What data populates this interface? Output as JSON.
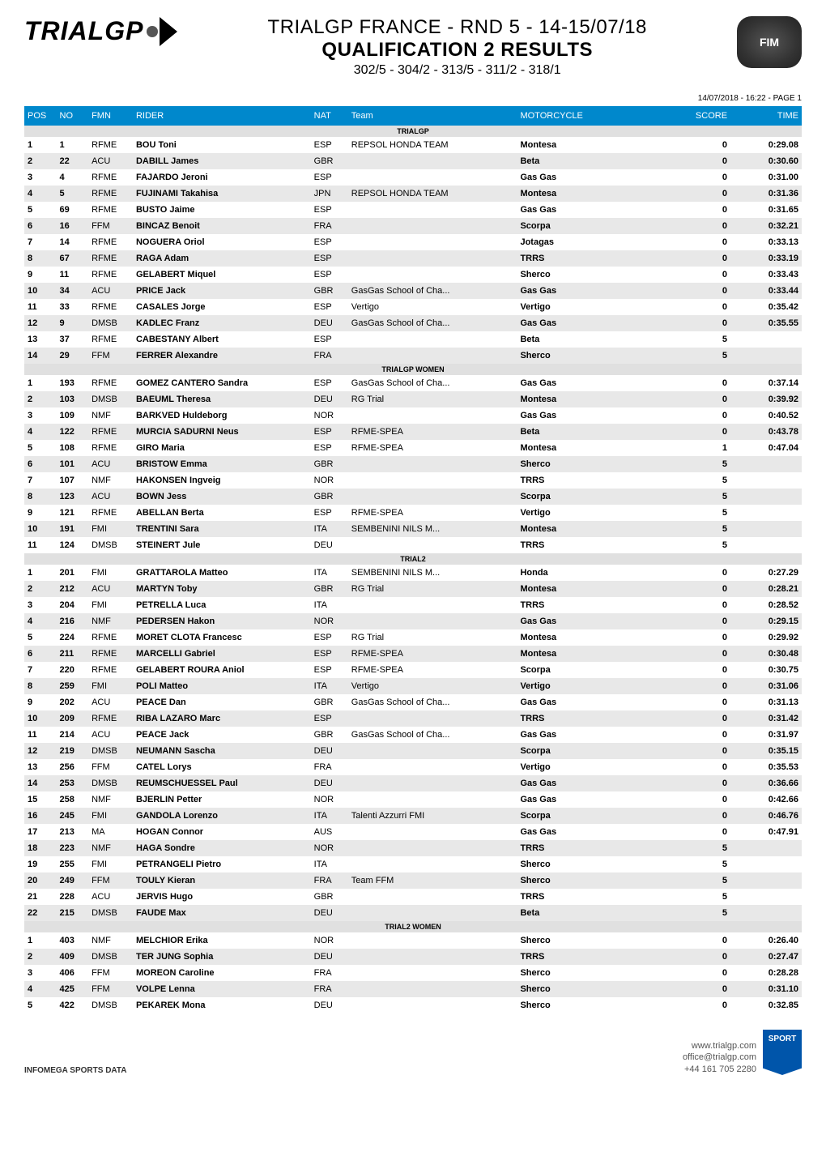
{
  "header": {
    "logo_left_text": "TRIALGP",
    "title_main": "TRIALGP FRANCE - RND 5 - 14-15/07/18",
    "title_sub": "QUALIFICATION 2 RESULTS",
    "title_small": "302/5 - 304/2 - 313/5 - 311/2 - 318/1",
    "logo_right_text": "FIM"
  },
  "page_meta": "14/07/2018 - 16:22 - PAGE 1",
  "columns": [
    "POS",
    "NO",
    "FMN",
    "RIDER",
    "NAT",
    "Team",
    "MOTORCYCLE",
    "SCORE",
    "TIME"
  ],
  "colors": {
    "header_bg": "#0088cc",
    "section_bg": "#e0e0e0",
    "alt_row_bg": "#e8e8e8",
    "footer_badge_bg": "#0055aa"
  },
  "sections": [
    {
      "name": "TRIALGP",
      "rows": [
        {
          "pos": "1",
          "no": "1",
          "fmn": "RFME",
          "rider": "BOU Toni",
          "nat": "ESP",
          "team": "REPSOL HONDA TEAM",
          "mc": "Montesa",
          "score": "0",
          "time": "0:29.08"
        },
        {
          "pos": "2",
          "no": "22",
          "fmn": "ACU",
          "rider": "DABILL James",
          "nat": "GBR",
          "team": "",
          "mc": "Beta",
          "score": "0",
          "time": "0:30.60"
        },
        {
          "pos": "3",
          "no": "4",
          "fmn": "RFME",
          "rider": "FAJARDO Jeroni",
          "nat": "ESP",
          "team": "",
          "mc": "Gas Gas",
          "score": "0",
          "time": "0:31.00"
        },
        {
          "pos": "4",
          "no": "5",
          "fmn": "RFME",
          "rider": "FUJINAMI Takahisa",
          "nat": "JPN",
          "team": "REPSOL HONDA TEAM",
          "mc": "Montesa",
          "score": "0",
          "time": "0:31.36"
        },
        {
          "pos": "5",
          "no": "69",
          "fmn": "RFME",
          "rider": "BUSTO Jaime",
          "nat": "ESP",
          "team": "",
          "mc": "Gas Gas",
          "score": "0",
          "time": "0:31.65"
        },
        {
          "pos": "6",
          "no": "16",
          "fmn": "FFM",
          "rider": "BINCAZ Benoit",
          "nat": "FRA",
          "team": "",
          "mc": "Scorpa",
          "score": "0",
          "time": "0:32.21"
        },
        {
          "pos": "7",
          "no": "14",
          "fmn": "RFME",
          "rider": "NOGUERA Oriol",
          "nat": "ESP",
          "team": "",
          "mc": "Jotagas",
          "score": "0",
          "time": "0:33.13"
        },
        {
          "pos": "8",
          "no": "67",
          "fmn": "RFME",
          "rider": "RAGA Adam",
          "nat": "ESP",
          "team": "",
          "mc": "TRRS",
          "score": "0",
          "time": "0:33.19"
        },
        {
          "pos": "9",
          "no": "11",
          "fmn": "RFME",
          "rider": "GELABERT Miquel",
          "nat": "ESP",
          "team": "",
          "mc": "Sherco",
          "score": "0",
          "time": "0:33.43"
        },
        {
          "pos": "10",
          "no": "34",
          "fmn": "ACU",
          "rider": "PRICE Jack",
          "nat": "GBR",
          "team": "GasGas School of Cha...",
          "mc": "Gas Gas",
          "score": "0",
          "time": "0:33.44"
        },
        {
          "pos": "11",
          "no": "33",
          "fmn": "RFME",
          "rider": "CASALES Jorge",
          "nat": "ESP",
          "team": "Vertigo",
          "mc": "Vertigo",
          "score": "0",
          "time": "0:35.42"
        },
        {
          "pos": "12",
          "no": "9",
          "fmn": "DMSB",
          "rider": "KADLEC Franz",
          "nat": "DEU",
          "team": "GasGas School of Cha...",
          "mc": "Gas Gas",
          "score": "0",
          "time": "0:35.55"
        },
        {
          "pos": "13",
          "no": "37",
          "fmn": "RFME",
          "rider": "CABESTANY Albert",
          "nat": "ESP",
          "team": "",
          "mc": "Beta",
          "score": "5",
          "time": ""
        },
        {
          "pos": "14",
          "no": "29",
          "fmn": "FFM",
          "rider": "FERRER Alexandre",
          "nat": "FRA",
          "team": "",
          "mc": "Sherco",
          "score": "5",
          "time": ""
        }
      ]
    },
    {
      "name": "TRIALGP WOMEN",
      "rows": [
        {
          "pos": "1",
          "no": "193",
          "fmn": "RFME",
          "rider": "GOMEZ CANTERO Sandra",
          "nat": "ESP",
          "team": "GasGas School of Cha...",
          "mc": "Gas Gas",
          "score": "0",
          "time": "0:37.14"
        },
        {
          "pos": "2",
          "no": "103",
          "fmn": "DMSB",
          "rider": "BAEUML Theresa",
          "nat": "DEU",
          "team": "RG Trial",
          "mc": "Montesa",
          "score": "0",
          "time": "0:39.92"
        },
        {
          "pos": "3",
          "no": "109",
          "fmn": "NMF",
          "rider": "BARKVED Huldeborg",
          "nat": "NOR",
          "team": "",
          "mc": "Gas Gas",
          "score": "0",
          "time": "0:40.52"
        },
        {
          "pos": "4",
          "no": "122",
          "fmn": "RFME",
          "rider": "MURCIA SADURNI Neus",
          "nat": "ESP",
          "team": "RFME-SPEA",
          "mc": "Beta",
          "score": "0",
          "time": "0:43.78"
        },
        {
          "pos": "5",
          "no": "108",
          "fmn": "RFME",
          "rider": "GIRO Maria",
          "nat": "ESP",
          "team": "RFME-SPEA",
          "mc": "Montesa",
          "score": "1",
          "time": "0:47.04"
        },
        {
          "pos": "6",
          "no": "101",
          "fmn": "ACU",
          "rider": "BRISTOW Emma",
          "nat": "GBR",
          "team": "",
          "mc": "Sherco",
          "score": "5",
          "time": ""
        },
        {
          "pos": "7",
          "no": "107",
          "fmn": "NMF",
          "rider": "HAKONSEN Ingveig",
          "nat": "NOR",
          "team": "",
          "mc": "TRRS",
          "score": "5",
          "time": ""
        },
        {
          "pos": "8",
          "no": "123",
          "fmn": "ACU",
          "rider": "BOWN Jess",
          "nat": "GBR",
          "team": "",
          "mc": "Scorpa",
          "score": "5",
          "time": ""
        },
        {
          "pos": "9",
          "no": "121",
          "fmn": "RFME",
          "rider": "ABELLAN Berta",
          "nat": "ESP",
          "team": "RFME-SPEA",
          "mc": "Vertigo",
          "score": "5",
          "time": ""
        },
        {
          "pos": "10",
          "no": "191",
          "fmn": "FMI",
          "rider": "TRENTINI Sara",
          "nat": "ITA",
          "team": "SEMBENINI NILS M...",
          "mc": "Montesa",
          "score": "5",
          "time": ""
        },
        {
          "pos": "11",
          "no": "124",
          "fmn": "DMSB",
          "rider": "STEINERT Jule",
          "nat": "DEU",
          "team": "",
          "mc": "TRRS",
          "score": "5",
          "time": ""
        }
      ]
    },
    {
      "name": "TRIAL2",
      "rows": [
        {
          "pos": "1",
          "no": "201",
          "fmn": "FMI",
          "rider": "GRATTAROLA Matteo",
          "nat": "ITA",
          "team": "SEMBENINI NILS M...",
          "mc": "Honda",
          "score": "0",
          "time": "0:27.29"
        },
        {
          "pos": "2",
          "no": "212",
          "fmn": "ACU",
          "rider": "MARTYN Toby",
          "nat": "GBR",
          "team": "RG Trial",
          "mc": "Montesa",
          "score": "0",
          "time": "0:28.21"
        },
        {
          "pos": "3",
          "no": "204",
          "fmn": "FMI",
          "rider": "PETRELLA Luca",
          "nat": "ITA",
          "team": "",
          "mc": "TRRS",
          "score": "0",
          "time": "0:28.52"
        },
        {
          "pos": "4",
          "no": "216",
          "fmn": "NMF",
          "rider": "PEDERSEN Hakon",
          "nat": "NOR",
          "team": "",
          "mc": "Gas Gas",
          "score": "0",
          "time": "0:29.15"
        },
        {
          "pos": "5",
          "no": "224",
          "fmn": "RFME",
          "rider": "MORET CLOTA Francesc",
          "nat": "ESP",
          "team": "RG Trial",
          "mc": "Montesa",
          "score": "0",
          "time": "0:29.92"
        },
        {
          "pos": "6",
          "no": "211",
          "fmn": "RFME",
          "rider": "MARCELLI Gabriel",
          "nat": "ESP",
          "team": "RFME-SPEA",
          "mc": "Montesa",
          "score": "0",
          "time": "0:30.48"
        },
        {
          "pos": "7",
          "no": "220",
          "fmn": "RFME",
          "rider": "GELABERT ROURA Aniol",
          "nat": "ESP",
          "team": "RFME-SPEA",
          "mc": "Scorpa",
          "score": "0",
          "time": "0:30.75"
        },
        {
          "pos": "8",
          "no": "259",
          "fmn": "FMI",
          "rider": "POLI Matteo",
          "nat": "ITA",
          "team": "Vertigo",
          "mc": "Vertigo",
          "score": "0",
          "time": "0:31.06"
        },
        {
          "pos": "9",
          "no": "202",
          "fmn": "ACU",
          "rider": "PEACE Dan",
          "nat": "GBR",
          "team": "GasGas School of Cha...",
          "mc": "Gas Gas",
          "score": "0",
          "time": "0:31.13"
        },
        {
          "pos": "10",
          "no": "209",
          "fmn": "RFME",
          "rider": "RIBA LAZARO Marc",
          "nat": "ESP",
          "team": "",
          "mc": "TRRS",
          "score": "0",
          "time": "0:31.42"
        },
        {
          "pos": "11",
          "no": "214",
          "fmn": "ACU",
          "rider": "PEACE Jack",
          "nat": "GBR",
          "team": "GasGas School of Cha...",
          "mc": "Gas Gas",
          "score": "0",
          "time": "0:31.97"
        },
        {
          "pos": "12",
          "no": "219",
          "fmn": "DMSB",
          "rider": "NEUMANN Sascha",
          "nat": "DEU",
          "team": "",
          "mc": "Scorpa",
          "score": "0",
          "time": "0:35.15"
        },
        {
          "pos": "13",
          "no": "256",
          "fmn": "FFM",
          "rider": "CATEL Lorys",
          "nat": "FRA",
          "team": "",
          "mc": "Vertigo",
          "score": "0",
          "time": "0:35.53"
        },
        {
          "pos": "14",
          "no": "253",
          "fmn": "DMSB",
          "rider": "REUMSCHUESSEL Paul",
          "nat": "DEU",
          "team": "",
          "mc": "Gas Gas",
          "score": "0",
          "time": "0:36.66"
        },
        {
          "pos": "15",
          "no": "258",
          "fmn": "NMF",
          "rider": "BJERLIN Petter",
          "nat": "NOR",
          "team": "",
          "mc": "Gas Gas",
          "score": "0",
          "time": "0:42.66"
        },
        {
          "pos": "16",
          "no": "245",
          "fmn": "FMI",
          "rider": "GANDOLA Lorenzo",
          "nat": "ITA",
          "team": "Talenti Azzurri FMI",
          "mc": "Scorpa",
          "score": "0",
          "time": "0:46.76"
        },
        {
          "pos": "17",
          "no": "213",
          "fmn": "MA",
          "rider": "HOGAN Connor",
          "nat": "AUS",
          "team": "",
          "mc": "Gas Gas",
          "score": "0",
          "time": "0:47.91"
        },
        {
          "pos": "18",
          "no": "223",
          "fmn": "NMF",
          "rider": "HAGA Sondre",
          "nat": "NOR",
          "team": "",
          "mc": "TRRS",
          "score": "5",
          "time": ""
        },
        {
          "pos": "19",
          "no": "255",
          "fmn": "FMI",
          "rider": "PETRANGELI Pietro",
          "nat": "ITA",
          "team": "",
          "mc": "Sherco",
          "score": "5",
          "time": ""
        },
        {
          "pos": "20",
          "no": "249",
          "fmn": "FFM",
          "rider": "TOULY Kieran",
          "nat": "FRA",
          "team": "Team FFM",
          "mc": "Sherco",
          "score": "5",
          "time": ""
        },
        {
          "pos": "21",
          "no": "228",
          "fmn": "ACU",
          "rider": "JERVIS Hugo",
          "nat": "GBR",
          "team": "",
          "mc": "TRRS",
          "score": "5",
          "time": ""
        },
        {
          "pos": "22",
          "no": "215",
          "fmn": "DMSB",
          "rider": "FAUDE Max",
          "nat": "DEU",
          "team": "",
          "mc": "Beta",
          "score": "5",
          "time": ""
        }
      ]
    },
    {
      "name": "TRIAL2 WOMEN",
      "rows": [
        {
          "pos": "1",
          "no": "403",
          "fmn": "NMF",
          "rider": "MELCHIOR Erika",
          "nat": "NOR",
          "team": "",
          "mc": "Sherco",
          "score": "0",
          "time": "0:26.40"
        },
        {
          "pos": "2",
          "no": "409",
          "fmn": "DMSB",
          "rider": "TER JUNG Sophia",
          "nat": "DEU",
          "team": "",
          "mc": "TRRS",
          "score": "0",
          "time": "0:27.47"
        },
        {
          "pos": "3",
          "no": "406",
          "fmn": "FFM",
          "rider": "MOREON Caroline",
          "nat": "FRA",
          "team": "",
          "mc": "Sherco",
          "score": "0",
          "time": "0:28.28"
        },
        {
          "pos": "4",
          "no": "425",
          "fmn": "FFM",
          "rider": "VOLPE Lenna",
          "nat": "FRA",
          "team": "",
          "mc": "Sherco",
          "score": "0",
          "time": "0:31.10"
        },
        {
          "pos": "5",
          "no": "422",
          "fmn": "DMSB",
          "rider": "PEKAREK Mona",
          "nat": "DEU",
          "team": "",
          "mc": "Sherco",
          "score": "0",
          "time": "0:32.85"
        }
      ]
    }
  ],
  "footer": {
    "left": "INFOMEGA SPORTS DATA",
    "right_lines": [
      "www.trialgp.com",
      "office@trialgp.com",
      "+44 161 705 2280"
    ],
    "badge_text": "SPORT"
  }
}
